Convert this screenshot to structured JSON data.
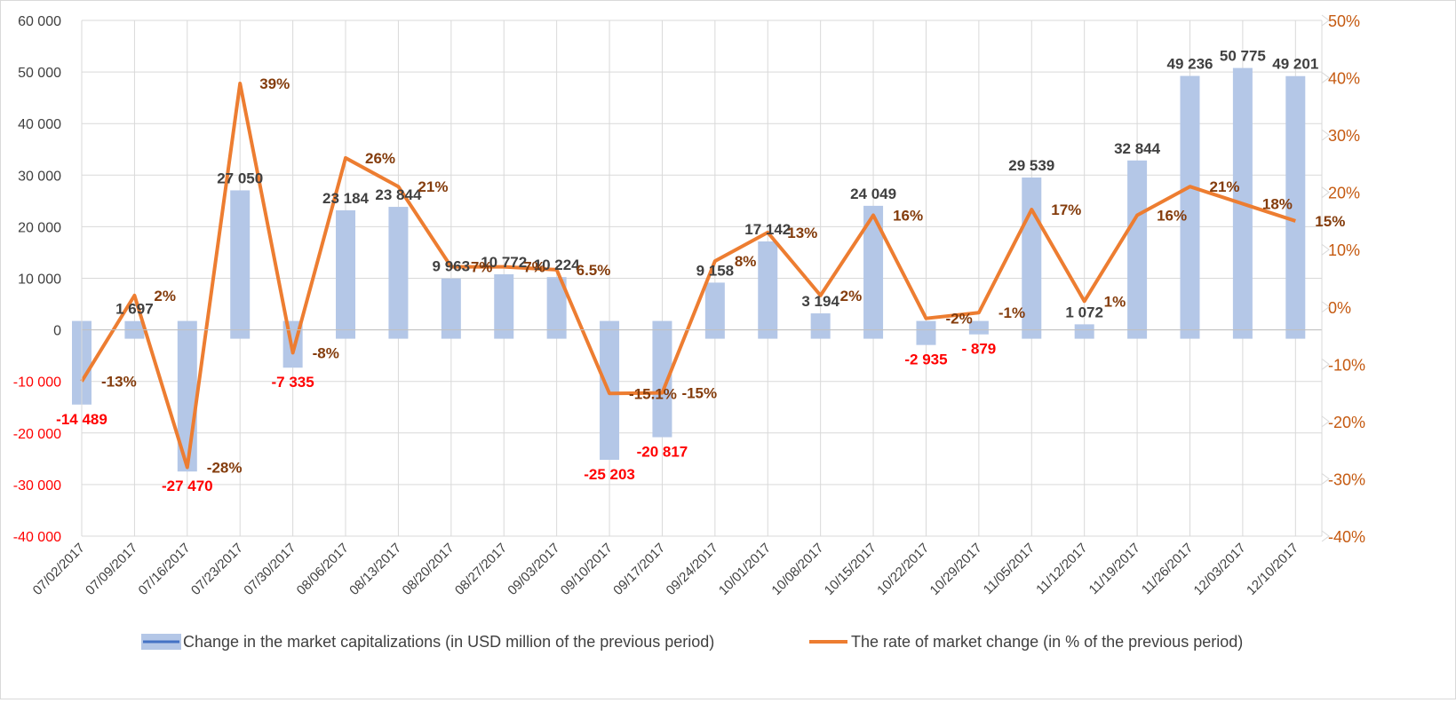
{
  "chart_data": {
    "type": "bar+line",
    "categories": [
      "07/02/2017",
      "07/09/2017",
      "07/16/2017",
      "07/23/2017",
      "07/30/2017",
      "08/06/2017",
      "08/13/2017",
      "08/20/2017",
      "08/27/2017",
      "09/03/2017",
      "09/10/2017",
      "09/17/2017",
      "09/24/2017",
      "10/01/2017",
      "10/08/2017",
      "10/15/2017",
      "10/22/2017",
      "10/29/2017",
      "11/05/2017",
      "11/12/2017",
      "11/19/2017",
      "11/26/2017",
      "12/03/2017",
      "12/10/2017"
    ],
    "series": [
      {
        "name": "Change in the market capitalizations  (in USD million of the previous period)",
        "type": "bar",
        "axis": "left",
        "color": "#b4c7e7",
        "values": [
          -14489,
          1697,
          -27470,
          27050,
          -7335,
          23184,
          23844,
          9963,
          10772,
          10224,
          -25203,
          -20817,
          9158,
          17142,
          3194,
          24049,
          -2935,
          -879,
          29539,
          1072,
          32844,
          49236,
          50775,
          49201
        ],
        "labels": [
          "-14 489",
          "1 697",
          "-27 470",
          "27 050",
          "-7 335",
          "23 184",
          "23 844",
          "9 963",
          "10 772",
          "10 224",
          "-25 203",
          "-20 817",
          "9 158",
          "17 142",
          "3 194",
          "24 049",
          "-2 935",
          "- 879",
          "29 539",
          "1 072",
          "32 844",
          "49 236",
          "50 775",
          "49 201"
        ]
      },
      {
        "name": "The rate of market change (in % of the previous period)",
        "type": "line",
        "axis": "right",
        "color": "#ed7d31",
        "values": [
          -13,
          2,
          -28,
          39,
          -8,
          26,
          21,
          7,
          7,
          6.5,
          -15.1,
          -15,
          8,
          13,
          2,
          16,
          -2,
          -1,
          17,
          1,
          16,
          21,
          18,
          15
        ],
        "labels": [
          "-13%",
          "2%",
          "-28%",
          "39%",
          "-8%",
          "26%",
          "21%",
          "7%",
          "7%",
          "6.5%",
          "-15.1%",
          "-15%",
          "8%",
          "13%",
          "2%",
          "16%",
          "-2%",
          "-1%",
          "17%",
          "1%",
          "16%",
          "21%",
          "18%",
          "15%"
        ]
      }
    ],
    "y_left": {
      "ylim": [
        -40000,
        60000
      ],
      "ticks": [
        "-40 000",
        "-30 000",
        "-20 000",
        "-10 000",
        "0",
        "10 000",
        "20 000",
        "30 000",
        "40 000",
        "50 000",
        "60 000"
      ],
      "negative_color": "#ff0000"
    },
    "y_right": {
      "ylim": [
        -40,
        50
      ],
      "ticks": [
        "-40%",
        "-30%",
        "-20%",
        "-10%",
        "0%",
        "10%",
        "20%",
        "30%",
        "40%",
        "50%"
      ]
    },
    "grid": true,
    "legend_position": "bottom"
  },
  "colors": {
    "bar": "#b4c7e7",
    "line": "#ed7d31",
    "negative": "#ff0000",
    "pct_label": "#843c0c",
    "right_axis": "#c55a11"
  }
}
